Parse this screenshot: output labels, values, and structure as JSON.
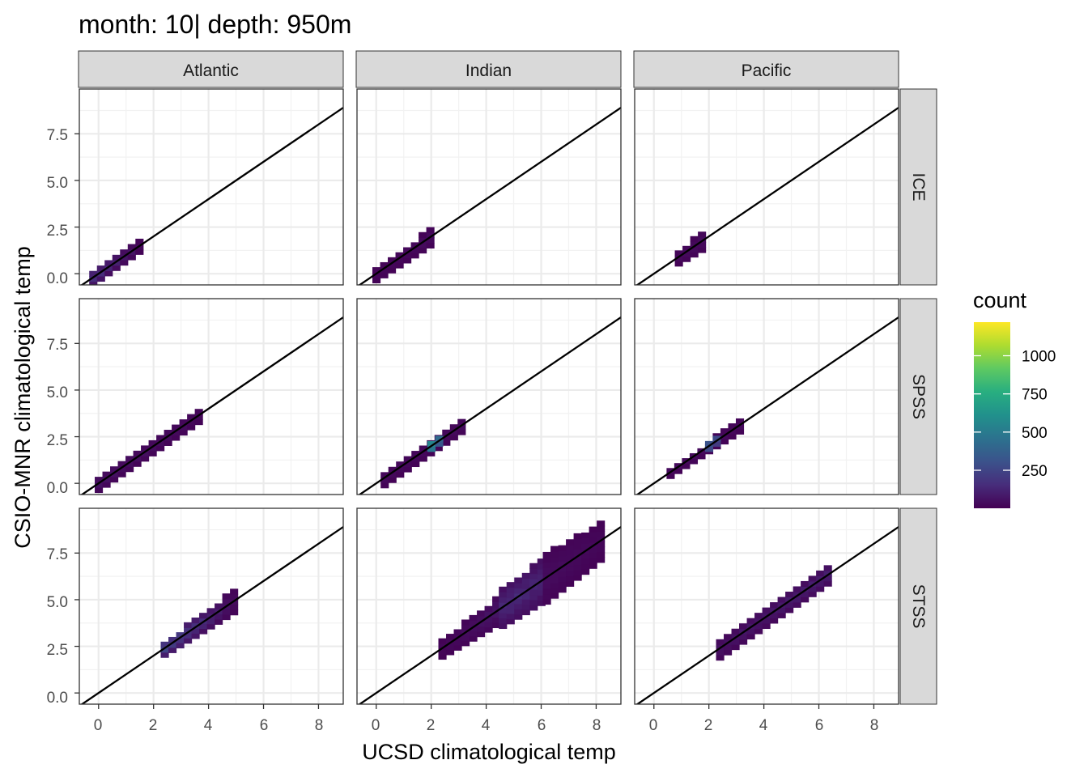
{
  "title": "month: 10| depth: 950m",
  "chart_data": {
    "type": "heatmap",
    "title": "month: 10| depth: 950m",
    "xlabel": "UCSD climatological temp",
    "ylabel": "CSIO-MNR climatological temp",
    "xlim": [
      -0.7,
      8.9
    ],
    "ylim": [
      -0.6,
      9.9
    ],
    "x_ticks": [
      "0",
      "2",
      "4",
      "6",
      "8"
    ],
    "y_ticks": [
      "0.0",
      "2.5",
      "5.0",
      "7.5"
    ],
    "columns": [
      "Atlantic",
      "Indian",
      "Pacific"
    ],
    "rows": [
      "ICE",
      "SPSS",
      "STSS"
    ],
    "grid": true,
    "reference_line": "y = x",
    "bin_width": 0.28,
    "legend": {
      "title": "count",
      "ticks": [
        "1000",
        "750",
        "500",
        "250"
      ],
      "tick_values": [
        1000,
        750,
        500,
        250
      ],
      "min": 1,
      "max": 1220,
      "placement": "right",
      "colors": [
        "#440154",
        "#472d7b",
        "#3b528b",
        "#2c728e",
        "#21918c",
        "#28ae80",
        "#5ec962",
        "#addc30",
        "#fde725"
      ]
    },
    "panels": [
      {
        "column": "Atlantic",
        "row": "ICE",
        "ridges": [
          {
            "x0": -0.2,
            "x1": 1.6,
            "h0": 0.35,
            "h1": 0.3,
            "c0": 200,
            "c1": 20
          }
        ]
      },
      {
        "column": "Atlantic",
        "row": "SPSS",
        "ridges": [
          {
            "x0": 0.0,
            "x1": 3.7,
            "h0": 0.35,
            "h1": 0.35,
            "c0": 60,
            "c1": 30
          }
        ]
      },
      {
        "column": "Atlantic",
        "row": "STSS",
        "ridges": [
          {
            "x0": 2.4,
            "x1": 5.0,
            "h0": 0.35,
            "h1": 0.6,
            "c0": 300,
            "c1": 30
          }
        ]
      },
      {
        "column": "Indian",
        "row": "ICE",
        "ridges": [
          {
            "x0": 0.0,
            "x1": 2.1,
            "h0": 0.35,
            "h1": 0.45,
            "c0": 20,
            "c1": 40
          }
        ]
      },
      {
        "column": "Indian",
        "row": "SPSS",
        "ridges": [
          {
            "x0": 0.3,
            "x1": 3.1,
            "h0": 0.4,
            "h1": 0.35,
            "c0": 30,
            "c1": 40
          },
          {
            "x0": 2.0,
            "x1": 2.4,
            "h0": 0.15,
            "h1": 0.15,
            "c0": 1200,
            "c1": 1000
          }
        ]
      },
      {
        "column": "Indian",
        "row": "STSS",
        "ridges": [
          {
            "x0": 2.4,
            "x1": 4.6,
            "h0": 0.45,
            "h1": 0.75,
            "c0": 20,
            "c1": 80
          },
          {
            "x0": 4.6,
            "x1": 6.2,
            "h0": 1.0,
            "h1": 1.2,
            "c0": 150,
            "c1": 120
          },
          {
            "x0": 6.2,
            "x1": 8.3,
            "h0": 1.3,
            "h1": 1.0,
            "c0": 40,
            "c1": 20
          }
        ]
      },
      {
        "column": "Pacific",
        "row": "ICE",
        "ridges": [
          {
            "x0": 0.9,
            "x1": 2.0,
            "h0": 0.35,
            "h1": 0.5,
            "c0": 30,
            "c1": 40
          }
        ]
      },
      {
        "column": "Pacific",
        "row": "SPSS",
        "ridges": [
          {
            "x0": 0.6,
            "x1": 3.3,
            "h0": 0.2,
            "h1": 0.35,
            "c0": 40,
            "c1": 30
          },
          {
            "x0": 2.0,
            "x1": 2.5,
            "h0": 0.15,
            "h1": 0.15,
            "c0": 700,
            "c1": 600
          }
        ]
      },
      {
        "column": "Pacific",
        "row": "STSS",
        "ridges": [
          {
            "x0": 2.4,
            "x1": 6.5,
            "h0": 0.5,
            "h1": 0.45,
            "c0": 60,
            "c1": 120
          }
        ]
      }
    ]
  }
}
